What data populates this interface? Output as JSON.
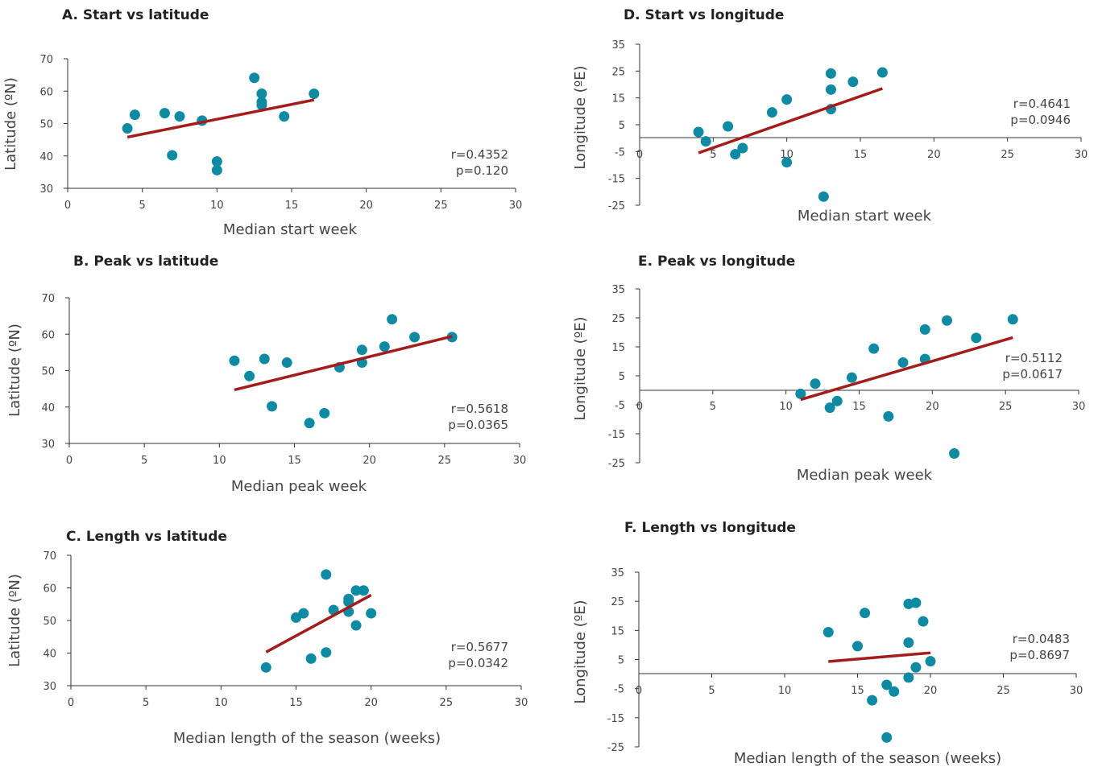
{
  "colors": {
    "point": "#0f8aa3",
    "trend": "#a51c1c",
    "axis": "#333333",
    "text": "#444444"
  },
  "chart_data": [
    {
      "id": "A",
      "type": "scatter",
      "title": "A. Start vs latitude",
      "xlabel": "Median start week",
      "ylabel": "Latitude (ºN)",
      "xlim": [
        0,
        30
      ],
      "ylim": [
        30,
        70
      ],
      "xticks": [
        "0",
        "5",
        "10",
        "15",
        "20",
        "25",
        "30"
      ],
      "yticks": [
        "30",
        "40",
        "50",
        "60",
        "70"
      ],
      "points": [
        [
          4,
          48.5
        ],
        [
          4.5,
          52.7
        ],
        [
          6.5,
          53.2
        ],
        [
          7,
          40.2
        ],
        [
          7.5,
          52.2
        ],
        [
          9,
          50.9
        ],
        [
          10,
          38.3
        ],
        [
          10,
          35.6
        ],
        [
          12.5,
          64.1
        ],
        [
          13,
          59.2
        ],
        [
          13,
          56.6
        ],
        [
          13,
          55.7
        ],
        [
          14.5,
          52.2
        ],
        [
          16.5,
          59.2
        ]
      ],
      "trend": [
        [
          4,
          45.8
        ],
        [
          16.5,
          57.3
        ]
      ],
      "stats": [
        "r=0.4352",
        "p=0.120"
      ],
      "legend": "none",
      "grid": false
    },
    {
      "id": "B",
      "type": "scatter",
      "title": "B. Peak vs latitude",
      "xlabel": "Median peak week",
      "ylabel": "Latitude (ºN)",
      "xlim": [
        0,
        30
      ],
      "ylim": [
        30,
        70
      ],
      "xticks": [
        "0",
        "5",
        "10",
        "15",
        "20",
        "25",
        "30"
      ],
      "yticks": [
        "30",
        "40",
        "50",
        "60",
        "70"
      ],
      "points": [
        [
          11,
          52.7
        ],
        [
          12,
          48.5
        ],
        [
          13,
          53.2
        ],
        [
          13.5,
          40.2
        ],
        [
          14.5,
          52.2
        ],
        [
          16,
          35.6
        ],
        [
          17,
          38.3
        ],
        [
          18,
          50.9
        ],
        [
          19.5,
          55.7
        ],
        [
          19.5,
          52.2
        ],
        [
          21,
          56.6
        ],
        [
          21.5,
          64.1
        ],
        [
          23,
          59.2
        ],
        [
          25.5,
          59.2
        ]
      ],
      "trend": [
        [
          11,
          44.7
        ],
        [
          25.5,
          59.4
        ]
      ],
      "stats": [
        "r=0.5618",
        "p=0.0365"
      ],
      "legend": "none",
      "grid": false
    },
    {
      "id": "C",
      "type": "scatter",
      "title": "C. Length vs latitude",
      "xlabel": "Median length of the season (weeks)",
      "ylabel": "Latitude (ºN)",
      "xlim": [
        0,
        30
      ],
      "ylim": [
        30,
        70
      ],
      "xticks": [
        "0",
        "5",
        "10",
        "15",
        "20",
        "25",
        "30"
      ],
      "yticks": [
        "30",
        "40",
        "50",
        "60",
        "70"
      ],
      "points": [
        [
          13,
          35.6
        ],
        [
          15,
          50.9
        ],
        [
          15.5,
          52.2
        ],
        [
          16,
          38.3
        ],
        [
          17,
          64.1
        ],
        [
          17,
          40.2
        ],
        [
          17.5,
          53.2
        ],
        [
          18.5,
          56.6
        ],
        [
          18.5,
          55.7
        ],
        [
          18.5,
          52.7
        ],
        [
          19,
          59.2
        ],
        [
          19,
          48.5
        ],
        [
          19.5,
          59.2
        ],
        [
          20,
          52.2
        ]
      ],
      "trend": [
        [
          13,
          40.3
        ],
        [
          20,
          57.8
        ]
      ],
      "stats": [
        "r=0.5677",
        "p=0.0342"
      ],
      "legend": "none",
      "grid": false
    },
    {
      "id": "D",
      "type": "scatter",
      "title": "D. Start vs longitude",
      "xlabel": "Median start week",
      "ylabel": "Longitude (ºE)",
      "xlim": [
        0,
        30
      ],
      "ylim": [
        -25,
        35
      ],
      "xticks": [
        "0",
        "5",
        "10",
        "15",
        "20",
        "25",
        "30"
      ],
      "yticks": [
        "-25",
        "-15",
        "-5",
        "5",
        "15",
        "25",
        "35"
      ],
      "points": [
        [
          4,
          2.3
        ],
        [
          4.5,
          -1.2
        ],
        [
          6,
          4.4
        ],
        [
          6.5,
          -6
        ],
        [
          7,
          -3.7
        ],
        [
          9,
          9.6
        ],
        [
          10,
          14.4
        ],
        [
          10,
          -9
        ],
        [
          12.5,
          -21.8
        ],
        [
          13,
          24.1
        ],
        [
          13,
          18.1
        ],
        [
          13,
          10.8
        ],
        [
          14.5,
          21
        ],
        [
          16.5,
          24.5
        ]
      ],
      "trend": [
        [
          4,
          -5.5
        ],
        [
          16.5,
          18.5
        ]
      ],
      "stats": [
        "r=0.4641",
        "p=0.0946"
      ],
      "legend": "none",
      "grid": false
    },
    {
      "id": "E",
      "type": "scatter",
      "title": "E. Peak vs longitude",
      "xlabel": "Median peak week",
      "ylabel": "Longitude (ºE)",
      "xlim": [
        0,
        30
      ],
      "ylim": [
        -25,
        35
      ],
      "xticks": [
        "0",
        "5",
        "10",
        "15",
        "20",
        "25",
        "30"
      ],
      "yticks": [
        "-25",
        "-15",
        "-5",
        "5",
        "15",
        "25",
        "35"
      ],
      "points": [
        [
          11,
          -1.2
        ],
        [
          12,
          2.3
        ],
        [
          13,
          -6
        ],
        [
          13.5,
          -3.7
        ],
        [
          14.5,
          4.4
        ],
        [
          16,
          14.4
        ],
        [
          17,
          -9
        ],
        [
          18,
          9.6
        ],
        [
          19.5,
          21
        ],
        [
          19.5,
          10.8
        ],
        [
          21,
          24.1
        ],
        [
          21.5,
          -21.8
        ],
        [
          23,
          18.1
        ],
        [
          25.5,
          24.5
        ]
      ],
      "trend": [
        [
          11,
          -3.2
        ],
        [
          25.5,
          18.2
        ]
      ],
      "stats": [
        "r=0.5112",
        "p=0.0617"
      ],
      "legend": "none",
      "grid": false
    },
    {
      "id": "F",
      "type": "scatter",
      "title": "F. Length vs longitude",
      "xlabel": "Median length of the season (weeks)",
      "ylabel": "Longitude (ºE)",
      "xlim": [
        0,
        30
      ],
      "ylim": [
        -25,
        35
      ],
      "xticks": [
        "0",
        "5",
        "10",
        "15",
        "20",
        "25",
        "30"
      ],
      "yticks": [
        "-25",
        "-15",
        "-5",
        "5",
        "15",
        "25",
        "35"
      ],
      "points": [
        [
          13,
          14.4
        ],
        [
          15,
          9.6
        ],
        [
          15.5,
          21
        ],
        [
          16,
          -9
        ],
        [
          17,
          -3.7
        ],
        [
          17,
          -21.8
        ],
        [
          17.5,
          -6
        ],
        [
          18.5,
          24.1
        ],
        [
          18.5,
          10.8
        ],
        [
          18.5,
          -1.2
        ],
        [
          19,
          24.5
        ],
        [
          19,
          2.3
        ],
        [
          19.5,
          18.1
        ],
        [
          20,
          4.4
        ]
      ],
      "trend": [
        [
          13,
          4.3
        ],
        [
          20,
          7.3
        ]
      ],
      "stats": [
        "r=0.0483",
        "p=0.8697"
      ],
      "legend": "none",
      "grid": false
    }
  ]
}
